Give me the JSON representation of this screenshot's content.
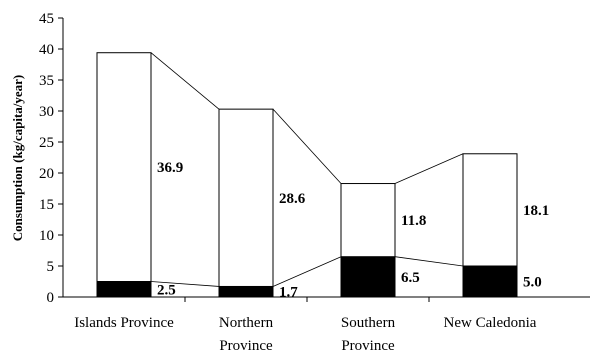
{
  "chart_data": {
    "type": "bar",
    "stacked": true,
    "categories": [
      [
        "Islands Province"
      ],
      [
        "Northern",
        "Province"
      ],
      [
        "Southern",
        "Province"
      ],
      [
        "New Caledonia"
      ]
    ],
    "series": [
      {
        "values": [
          2.5,
          1.7,
          6.5,
          5.0
        ],
        "color": "#000000",
        "labels": [
          "2.5",
          "1.7",
          "6.5",
          "5.0"
        ]
      },
      {
        "values": [
          36.9,
          28.6,
          11.8,
          18.1
        ],
        "color": "#ffffff",
        "labels": [
          "36.9",
          "28.6",
          "11.8",
          "18.1"
        ]
      }
    ],
    "ylabel": "Consumption (kg/capita/year)",
    "ylim": [
      0,
      45
    ],
    "yticks": [
      0,
      5,
      10,
      15,
      20,
      25,
      30,
      35,
      40,
      45
    ],
    "connector_lines": true,
    "grid": false,
    "legend": "none"
  }
}
